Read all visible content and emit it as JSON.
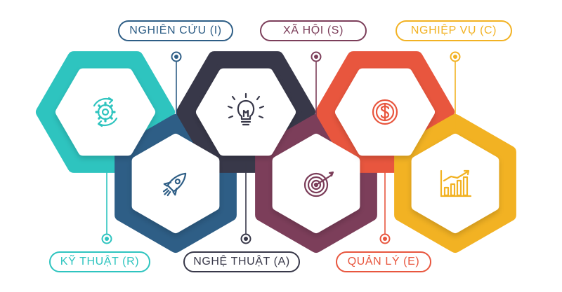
{
  "items": [
    {
      "key": "r",
      "label": "KỸ THUẬT (R)",
      "color": "#2ec4bf",
      "icon": "gear-cycle-icon"
    },
    {
      "key": "i",
      "label": "NGHIÊN CỨU (I)",
      "color": "#2e5e86",
      "icon": "rocket-icon"
    },
    {
      "key": "a",
      "label": "NGHỆ THUẬT (A)",
      "color": "#383849",
      "icon": "lightbulb-icon"
    },
    {
      "key": "s",
      "label": "XÃ HỘI (S)",
      "color": "#7c3e5a",
      "icon": "target-icon"
    },
    {
      "key": "e",
      "label": "QUẢN LÝ (E)",
      "color": "#e8563e",
      "icon": "dollar-coin-icon"
    },
    {
      "key": "c",
      "label": "NGHIỆP VỤ (C)",
      "color": "#f2b223",
      "icon": "growth-chart-icon"
    }
  ]
}
